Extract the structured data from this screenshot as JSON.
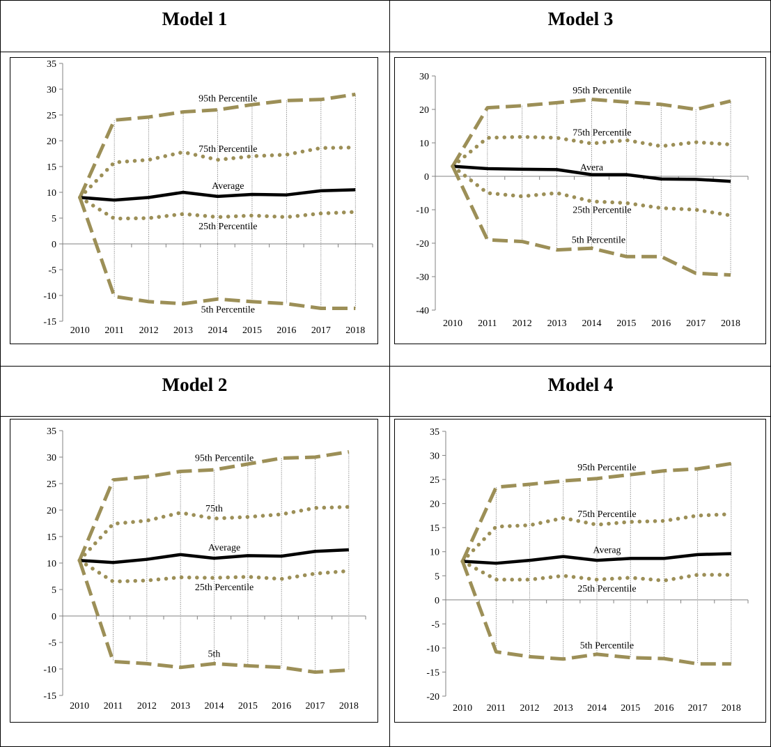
{
  "colors": {
    "percentile": "#9C8F57",
    "average": "#000000",
    "axis": "#808080",
    "grid": "#606060"
  },
  "panels": [
    {
      "title": "Model 1",
      "chart_data": {
        "type": "line",
        "x": [
          "2010",
          "2011",
          "2012",
          "2013",
          "2014",
          "2015",
          "2016",
          "2017",
          "2018"
        ],
        "ylim": [
          -15,
          35
        ],
        "yticks": [
          -15,
          -10,
          -5,
          0,
          5,
          10,
          15,
          20,
          25,
          30,
          35
        ],
        "xlabel": "",
        "ylabel": "",
        "series": [
          {
            "name": "95th Percentile",
            "style": "dashed",
            "values": [
              9,
              24,
              24.6,
              25.6,
              26,
              27,
              27.8,
              28,
              29
            ]
          },
          {
            "name": "75th Percentile",
            "style": "dotted",
            "values": [
              9,
              15.8,
              16.3,
              17.8,
              16.3,
              17,
              17.3,
              18.6,
              18.7
            ]
          },
          {
            "name": "Average",
            "style": "solid",
            "values": [
              9,
              8.5,
              9,
              10,
              9.2,
              9.6,
              9.5,
              10.3,
              10.5
            ]
          },
          {
            "name": "25th Percentile",
            "style": "dotted",
            "values": [
              9,
              4.9,
              5,
              5.8,
              5.2,
              5.5,
              5.2,
              5.9,
              6.2
            ]
          },
          {
            "name": "5th Percentile",
            "style": "dashed",
            "values": [
              9,
              -10.2,
              -11.2,
              -11.6,
              -10.7,
              -11.2,
              -11.6,
              -12.5,
              -12.5
            ]
          }
        ]
      }
    },
    {
      "title": "Model 3",
      "chart_data": {
        "type": "line",
        "x": [
          "2010",
          "2011",
          "2012",
          "2013",
          "2014",
          "2015",
          "2016",
          "2017",
          "2018"
        ],
        "ylim": [
          -40,
          30
        ],
        "yticks": [
          -40,
          -30,
          -20,
          -10,
          0,
          10,
          20,
          30
        ],
        "xlabel": "",
        "ylabel": "",
        "series": [
          {
            "name": "95th Percentile",
            "style": "dashed",
            "values": [
              3,
              20.5,
              21.1,
              22,
              23,
              22.2,
              21.5,
              20,
              22.5
            ]
          },
          {
            "name": "75th Percentile",
            "style": "dotted",
            "values": [
              3,
              11.5,
              11.8,
              11.5,
              9.8,
              10.8,
              9,
              10.2,
              9.5
            ]
          },
          {
            "name": "Avera",
            "style": "solid",
            "values": [
              3,
              2.3,
              2.1,
              2,
              0.5,
              0.5,
              -0.8,
              -0.9,
              -1.5
            ]
          },
          {
            "name": "25th Percentile",
            "style": "dotted",
            "values": [
              3,
              -5,
              -6,
              -5,
              -7.5,
              -8,
              -9.5,
              -10,
              -11.7
            ]
          },
          {
            "name": "5th Percentile",
            "style": "dashed",
            "values": [
              3,
              -19,
              -19.5,
              -22,
              -21.5,
              -24,
              -24,
              -29,
              -29.5
            ]
          }
        ]
      }
    },
    {
      "title": "Model 2",
      "chart_data": {
        "type": "line",
        "x": [
          "2010",
          "2011",
          "2012",
          "2013",
          "2014",
          "2015",
          "2016",
          "2017",
          "2018"
        ],
        "ylim": [
          -15,
          35
        ],
        "yticks": [
          -15,
          -10,
          -5,
          0,
          5,
          10,
          15,
          20,
          25,
          30,
          35
        ],
        "xlabel": "",
        "ylabel": "",
        "series": [
          {
            "name": "95th Percentile",
            "style": "dashed",
            "values": [
              10.5,
              25.7,
              26.3,
              27.3,
              27.6,
              28.7,
              29.8,
              30,
              31
            ]
          },
          {
            "name": "75th",
            "style": "dotted",
            "values": [
              10.5,
              17.4,
              18,
              19.5,
              18.4,
              18.7,
              19.2,
              20.4,
              20.6
            ]
          },
          {
            "name": "Average",
            "style": "solid",
            "values": [
              10.5,
              10.1,
              10.7,
              11.6,
              10.9,
              11.4,
              11.3,
              12.2,
              12.5
            ]
          },
          {
            "name": "25th Percentile",
            "style": "dotted",
            "values": [
              10.5,
              6.5,
              6.7,
              7.3,
              7.2,
              7.4,
              7,
              8,
              8.5
            ]
          },
          {
            "name": "5th",
            "style": "dashed",
            "values": [
              10.5,
              -8.6,
              -9,
              -9.7,
              -9,
              -9.4,
              -9.7,
              -10.6,
              -10.2
            ]
          }
        ]
      }
    },
    {
      "title": "Model 4",
      "chart_data": {
        "type": "line",
        "x": [
          "2010",
          "2011",
          "2012",
          "2013",
          "2014",
          "2015",
          "2016",
          "2017",
          "2018"
        ],
        "ylim": [
          -20,
          35
        ],
        "yticks": [
          -20,
          -15,
          -10,
          -5,
          0,
          5,
          10,
          15,
          20,
          25,
          30,
          35
        ],
        "xlabel": "",
        "ylabel": "",
        "series": [
          {
            "name": "95th Percentile",
            "style": "dashed",
            "values": [
              8,
              23.4,
              24,
              24.7,
              25.2,
              26,
              26.8,
              27.2,
              28.3
            ]
          },
          {
            "name": "75th Percentile",
            "style": "dotted",
            "values": [
              8,
              15.2,
              15.5,
              17,
              15.6,
              16.2,
              16.4,
              17.5,
              17.8
            ]
          },
          {
            "name": "Averag",
            "style": "solid",
            "values": [
              8,
              7.6,
              8.2,
              9,
              8.2,
              8.6,
              8.6,
              9.4,
              9.6
            ]
          },
          {
            "name": "25th Percentile",
            "style": "dotted",
            "values": [
              8,
              4.2,
              4.2,
              5,
              4.2,
              4.6,
              4,
              5.2,
              5.2
            ]
          },
          {
            "name": "5th Percentile",
            "style": "dashed",
            "values": [
              8,
              -10.8,
              -11.8,
              -12.3,
              -11.3,
              -12,
              -12.2,
              -13.3,
              -13.3
            ]
          }
        ]
      }
    }
  ]
}
